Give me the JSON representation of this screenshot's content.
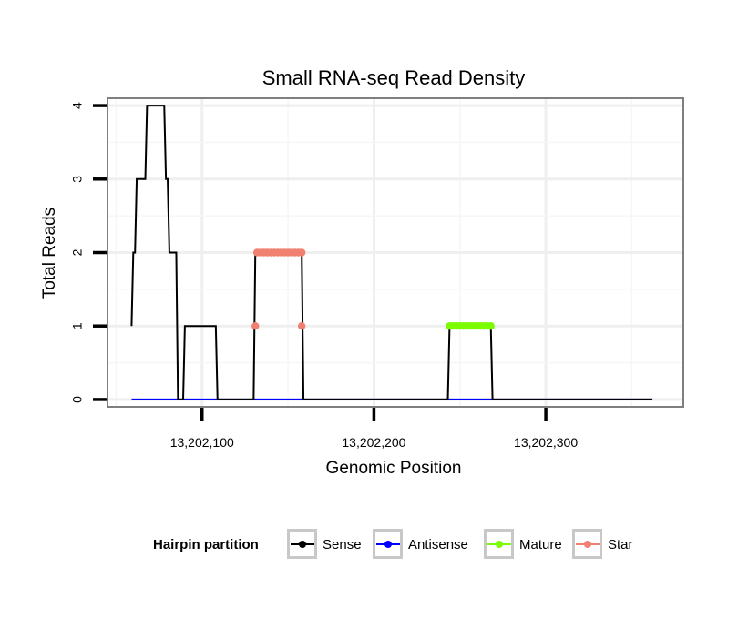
{
  "chart_data": {
    "type": "line",
    "title": "Small RNA-seq Read Density",
    "xlabel": "Genomic Position",
    "ylabel": "Total Reads",
    "xlim": [
      13202045,
      13202380
    ],
    "ylim": [
      -0.1,
      4.1
    ],
    "x_ticks": [
      13202100,
      13202200,
      13202300
    ],
    "x_tick_labels": [
      "13,202,100",
      "13,202,200",
      "13,202,300"
    ],
    "y_ticks": [
      0,
      1,
      2,
      3,
      4
    ],
    "y_tick_labels": [
      "0",
      "1",
      "2",
      "3",
      "4"
    ],
    "grid": true,
    "legend": {
      "title": "Hairpin partition",
      "position": "bottom",
      "entries": [
        "Sense",
        "Antisense",
        "Mature",
        "Star"
      ]
    },
    "series": [
      {
        "name": "Sense",
        "color": "#000000",
        "style": "step-line",
        "points": [
          [
            13202059,
            1
          ],
          [
            13202060,
            2
          ],
          [
            13202061,
            2
          ],
          [
            13202062,
            3
          ],
          [
            13202063,
            3
          ],
          [
            13202067,
            3
          ],
          [
            13202068,
            4
          ],
          [
            13202069,
            4
          ],
          [
            13202078,
            4
          ],
          [
            13202079,
            3
          ],
          [
            13202080,
            3
          ],
          [
            13202081,
            2
          ],
          [
            13202082,
            2
          ],
          [
            13202085,
            2
          ],
          [
            13202086,
            0
          ],
          [
            13202089,
            0
          ],
          [
            13202090,
            1
          ],
          [
            13202091,
            1
          ],
          [
            13202108,
            1
          ],
          [
            13202109,
            0
          ],
          [
            13202130,
            0
          ],
          [
            13202131,
            2
          ],
          [
            13202132,
            2
          ],
          [
            13202158,
            2
          ],
          [
            13202159,
            0
          ],
          [
            13202243,
            0
          ],
          [
            13202244,
            1
          ],
          [
            13202245,
            1
          ],
          [
            13202268,
            1
          ],
          [
            13202269,
            0
          ],
          [
            13202362,
            0
          ]
        ]
      },
      {
        "name": "Antisense",
        "color": "#0000ff",
        "style": "line",
        "points": [
          [
            13202059,
            0
          ],
          [
            13202362,
            0
          ]
        ]
      },
      {
        "name": "Mature",
        "color": "#7cfc00",
        "style": "points",
        "points": [
          [
            13202244,
            1
          ],
          [
            13202246,
            1
          ],
          [
            13202248,
            1
          ],
          [
            13202250,
            1
          ],
          [
            13202252,
            1
          ],
          [
            13202254,
            1
          ],
          [
            13202256,
            1
          ],
          [
            13202258,
            1
          ],
          [
            13202260,
            1
          ],
          [
            13202262,
            1
          ],
          [
            13202264,
            1
          ],
          [
            13202266,
            1
          ],
          [
            13202268,
            1
          ]
        ]
      },
      {
        "name": "Star",
        "color": "#f08070",
        "style": "points",
        "points": [
          [
            13202131,
            1
          ],
          [
            13202158,
            1
          ],
          [
            13202132,
            2
          ],
          [
            13202134,
            2
          ],
          [
            13202136,
            2
          ],
          [
            13202138,
            2
          ],
          [
            13202140,
            2
          ],
          [
            13202142,
            2
          ],
          [
            13202144,
            2
          ],
          [
            13202146,
            2
          ],
          [
            13202148,
            2
          ],
          [
            13202150,
            2
          ],
          [
            13202152,
            2
          ],
          [
            13202154,
            2
          ],
          [
            13202156,
            2
          ],
          [
            13202158,
            2
          ]
        ]
      }
    ]
  }
}
